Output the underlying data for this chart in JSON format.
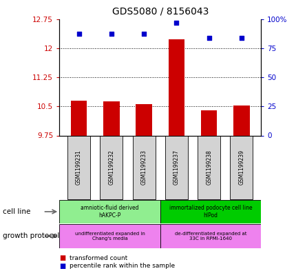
{
  "title": "GDS5080 / 8156043",
  "samples": [
    "GSM1199231",
    "GSM1199232",
    "GSM1199233",
    "GSM1199237",
    "GSM1199238",
    "GSM1199239"
  ],
  "red_values": [
    10.65,
    10.62,
    10.55,
    12.23,
    10.4,
    10.52
  ],
  "blue_values": [
    87,
    87,
    87,
    97,
    84,
    84
  ],
  "ylim_left": [
    9.75,
    12.75
  ],
  "ylim_right": [
    0,
    100
  ],
  "yticks_left": [
    9.75,
    10.5,
    11.25,
    12.0,
    12.75
  ],
  "yticks_right": [
    0,
    25,
    50,
    75,
    100
  ],
  "ytick_labels_left": [
    "9.75",
    "10.5",
    "11.25",
    "12",
    "12.75"
  ],
  "ytick_labels_right": [
    "0",
    "25",
    "50",
    "75",
    "100%"
  ],
  "bar_color": "#cc0000",
  "dot_color": "#0000cc",
  "cell_line_colors": [
    "#90ee90",
    "#00cc00"
  ],
  "cell_line_labels": [
    "amniotic-fluid derived\nhAKPC-P",
    "immortalized podocyte cell line\nhIPod"
  ],
  "growth_protocol_color": "#ee82ee",
  "growth_protocol_labels": [
    "undifferentiated expanded in\nChang's media",
    "de-differentiated expanded at\n33C in RPMI-1640"
  ],
  "left_tick_color": "#cc0000",
  "right_tick_color": "#0000cc",
  "sample_box_color": "#d3d3d3"
}
